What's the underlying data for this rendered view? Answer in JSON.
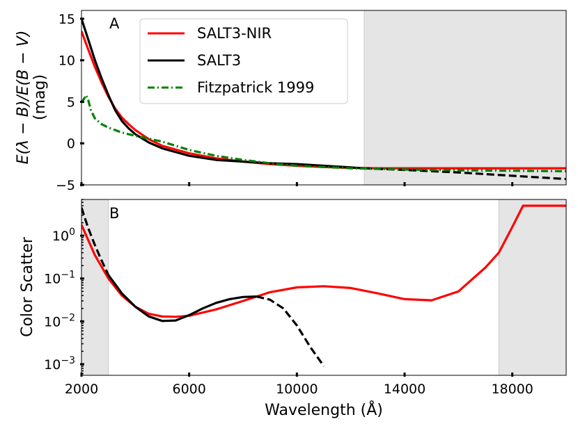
{
  "chart_data": [
    {
      "panel": "A",
      "type": "line",
      "ylabel": "E(λ − B)/E(B − V)",
      "ylabel_units": "(mag)",
      "xlim": [
        2000,
        20000
      ],
      "ylim": [
        -5,
        16
      ],
      "yticks": [
        15,
        10,
        5,
        0,
        -5
      ],
      "ytick_labels": [
        "15",
        "10",
        "5",
        "0",
        "−5"
      ],
      "xticks": [
        2000,
        6000,
        10000,
        14000,
        18000
      ],
      "shaded_range": [
        12500,
        20000
      ],
      "series": [
        {
          "name": "SALT3-NIR",
          "color": "#ff0000",
          "style": "solid",
          "x": [
            2000,
            2250,
            2500,
            2750,
            3000,
            3250,
            3500,
            3750,
            4000,
            4500,
            5000,
            6000,
            7000,
            8000,
            9000,
            10000,
            11000,
            12000,
            13000,
            14000,
            15000,
            16000,
            17000,
            18000,
            19000,
            20000
          ],
          "y": [
            13.5,
            11.3,
            9.2,
            7.3,
            5.6,
            4.2,
            3.1,
            2.3,
            1.6,
            0.5,
            -0.3,
            -1.2,
            -1.8,
            -2.2,
            -2.5,
            -2.7,
            -2.85,
            -2.95,
            -3.0,
            -3.0,
            -3.0,
            -3.0,
            -3.0,
            -3.0,
            -3.0,
            -3.0
          ]
        },
        {
          "name": "SALT3",
          "color": "#000000",
          "style": "solid",
          "x": [
            2000,
            2250,
            2500,
            2750,
            3000,
            3250,
            3500,
            3750,
            4000,
            4500,
            5000,
            6000,
            7000,
            8000,
            9000,
            10000,
            11000,
            12000,
            12500
          ],
          "y": [
            15.0,
            12.5,
            10.0,
            7.8,
            5.8,
            4.0,
            2.7,
            1.8,
            1.1,
            0.1,
            -0.6,
            -1.5,
            -2.0,
            -2.2,
            -2.4,
            -2.5,
            -2.7,
            -2.9,
            -3.0
          ]
        },
        {
          "name": "SALT3 (extrapolated)",
          "color": "#000000",
          "style": "dashed",
          "x": [
            12500,
            14000,
            16000,
            18000,
            20000
          ],
          "y": [
            -3.0,
            -3.2,
            -3.5,
            -3.9,
            -4.3
          ]
        },
        {
          "name": "Fitzpatrick 1999",
          "color": "#008000",
          "style": "dashdot",
          "x": [
            2000,
            2100,
            2175,
            2250,
            2350,
            2500,
            2750,
            3000,
            3500,
            4000,
            5000,
            6000,
            7000,
            8000,
            9000,
            10000,
            12000,
            14000,
            16000,
            18000,
            20000
          ],
          "y": [
            4.9,
            5.4,
            5.8,
            5.2,
            4.0,
            3.0,
            2.3,
            1.9,
            1.3,
            0.9,
            0.2,
            -0.8,
            -1.5,
            -2.0,
            -2.4,
            -2.7,
            -3.0,
            -3.15,
            -3.25,
            -3.3,
            -3.35
          ]
        }
      ],
      "legend": {
        "position": "upper-left",
        "entries": [
          {
            "label": "SALT3-NIR",
            "color": "#ff0000",
            "style": "solid"
          },
          {
            "label": "SALT3",
            "color": "#000000",
            "style": "solid"
          },
          {
            "label": "Fitzpatrick 1999",
            "color": "#008000",
            "style": "dashdot"
          }
        ]
      }
    },
    {
      "panel": "B",
      "type": "line",
      "yscale": "log",
      "ylabel": "Color Scatter",
      "xlabel": "Wavelength (Å)",
      "xlim": [
        2000,
        20000
      ],
      "ylim": [
        0.00055,
        7
      ],
      "yticks": [
        1,
        0.1,
        0.01,
        0.001
      ],
      "ytick_labels": [
        {
          "base": "10",
          "exp": "0"
        },
        {
          "base": "10",
          "exp": "−1"
        },
        {
          "base": "10",
          "exp": "−2"
        },
        {
          "base": "10",
          "exp": "−3"
        }
      ],
      "xticks": [
        2000,
        6000,
        10000,
        14000,
        18000
      ],
      "xtick_labels": [
        "2000",
        "6000",
        "10000",
        "14000",
        "18000"
      ],
      "shaded_ranges": [
        [
          2000,
          3000
        ],
        [
          17500,
          20000
        ]
      ],
      "series": [
        {
          "name": "SALT3-NIR",
          "color": "#ff0000",
          "style": "solid",
          "x": [
            2000,
            2500,
            3000,
            3500,
            4000,
            4500,
            5000,
            5500,
            6000,
            7000,
            8000,
            9000,
            10000,
            11000,
            12000,
            13000,
            14000,
            15000,
            16000,
            17000,
            17500,
            18000,
            18400,
            19000,
            20000
          ],
          "y": [
            1.8,
            0.35,
            0.1,
            0.04,
            0.022,
            0.015,
            0.013,
            0.0128,
            0.0135,
            0.019,
            0.03,
            0.048,
            0.062,
            0.066,
            0.06,
            0.045,
            0.033,
            0.031,
            0.05,
            0.18,
            0.4,
            1.6,
            5.0,
            5.0,
            5.0
          ]
        },
        {
          "name": "SALT3",
          "color": "#000000",
          "style": "solid",
          "x": [
            3000,
            3500,
            4000,
            4500,
            5000,
            5500,
            6000,
            6500,
            7000,
            7500,
            8000,
            8500
          ],
          "y": [
            0.12,
            0.045,
            0.022,
            0.013,
            0.0102,
            0.0105,
            0.014,
            0.02,
            0.027,
            0.033,
            0.037,
            0.038
          ]
        },
        {
          "name": "SALT3 (extrapolated)",
          "color": "#000000",
          "style": "dashed",
          "x": [
            2000,
            2250,
            2500,
            2750,
            3000
          ],
          "y": [
            4.5,
            1.5,
            0.6,
            0.26,
            0.12
          ]
        },
        {
          "name": "SALT3 (extrapolated)",
          "color": "#000000",
          "style": "dashed",
          "x": [
            8500,
            9000,
            9500,
            10000,
            10500,
            11000
          ],
          "y": [
            0.038,
            0.032,
            0.02,
            0.008,
            0.0025,
            0.0009
          ]
        }
      ]
    }
  ]
}
